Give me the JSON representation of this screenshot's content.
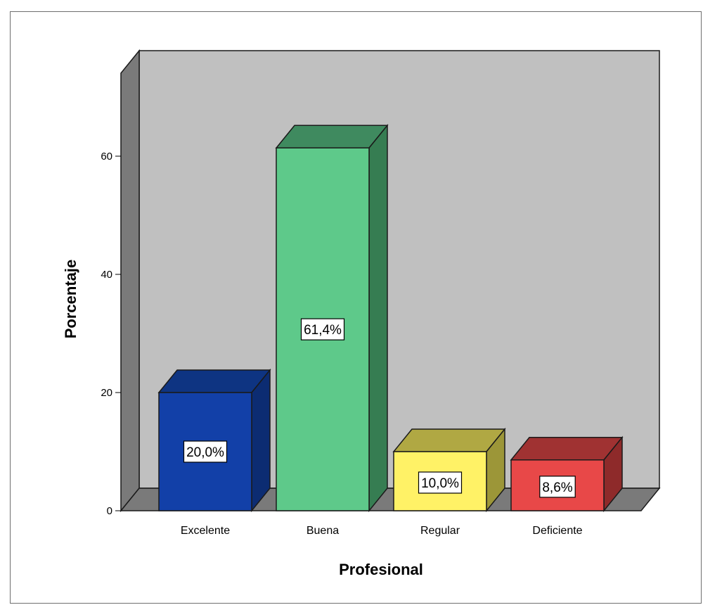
{
  "chart_data": {
    "type": "bar",
    "style": "3d",
    "categories": [
      "Excelente",
      "Buena",
      "Regular",
      "Deficiente"
    ],
    "values": [
      20.0,
      61.4,
      10.0,
      8.6
    ],
    "data_labels": [
      "20,0%",
      "61,4%",
      "10,0%",
      "8,6%"
    ],
    "colors": [
      "#1240a8",
      "#5ec98a",
      "#fff266",
      "#e84848"
    ],
    "side_colors": [
      "#0c2c72",
      "#367d52",
      "#9c9638",
      "#8e2a2a"
    ],
    "top_colors": [
      "#0e3482",
      "#3f8a5f",
      "#b0a843",
      "#a03232"
    ],
    "xlabel": "Profesional",
    "ylabel": "Porcentaje",
    "yticks": [
      0,
      20,
      40,
      60
    ],
    "ylim": [
      0,
      73
    ],
    "grid": false,
    "legend": false,
    "background_color": "#c0c0c0",
    "floor_color": "#7a7a7a"
  }
}
